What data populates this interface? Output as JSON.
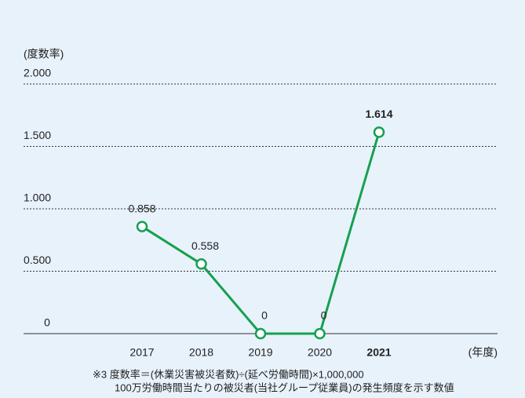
{
  "chart_data": {
    "type": "line",
    "ylabel": "(度数率)",
    "xlabel": "(年度)",
    "categories": [
      "2017",
      "2018",
      "2019",
      "2020",
      "2021"
    ],
    "series": [
      {
        "color": "#16a050",
        "values": [
          0.858,
          0.558,
          0,
          0,
          1.614
        ]
      }
    ],
    "ylim": [
      0,
      2
    ],
    "yticks": [
      0,
      {
        "value": 0.5,
        "label": "0.500"
      },
      {
        "value": 1,
        "label": "1.000"
      },
      {
        "value": 1.5,
        "label": "1.500"
      },
      {
        "value": 2,
        "label": "2.000"
      }
    ],
    "grid": true,
    "footnote": [
      "※3 度数率＝(休業災害被災者数)÷(延べ労働時間)×1,000,000",
      "100万労働時間当たりの被災者(当社グループ従業員)の発生頻度を示す数値"
    ]
  }
}
